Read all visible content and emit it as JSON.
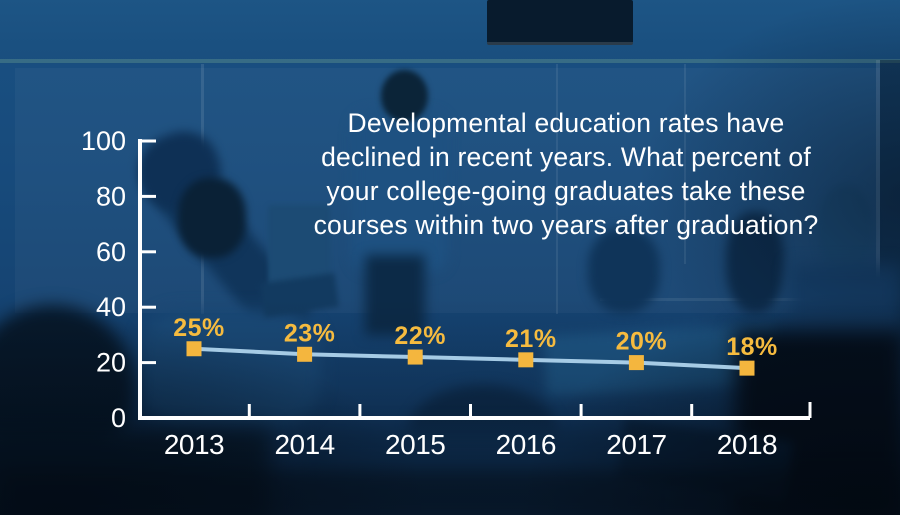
{
  "question": {
    "lines": [
      "Developmental education rates have",
      "declined in recent years. What percent of",
      "your college-going graduates take these",
      "courses within two years after graduation?"
    ]
  },
  "chart_data": {
    "type": "line",
    "categories": [
      "2013",
      "2014",
      "2015",
      "2016",
      "2017",
      "2018"
    ],
    "values": [
      25,
      23,
      22,
      21,
      20,
      18
    ],
    "data_labels": [
      "25%",
      "23%",
      "22%",
      "21%",
      "20%",
      "18%"
    ],
    "y_ticks": [
      0,
      20,
      40,
      60,
      80,
      100
    ],
    "ylim": [
      0,
      100
    ],
    "title": "",
    "xlabel": "",
    "ylabel": "",
    "grid": false,
    "legend": null,
    "marker_shape": "square",
    "axis_color": "#ffffff",
    "line_color": "#aed3ec",
    "marker_color": "#f4b63e",
    "label_color": "#f6bb3f"
  },
  "page": {
    "background_color": "#174a7b",
    "accent_gold": "#f4b63e",
    "accent_light_blue": "#aed3ec"
  }
}
